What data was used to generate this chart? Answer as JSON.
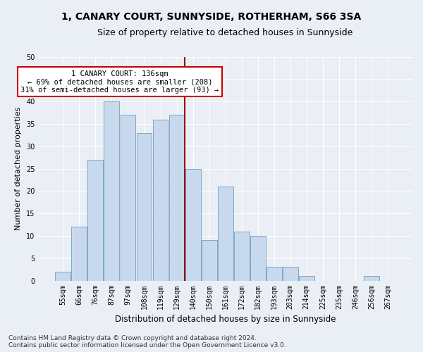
{
  "title1": "1, CANARY COURT, SUNNYSIDE, ROTHERHAM, S66 3SA",
  "title2": "Size of property relative to detached houses in Sunnyside",
  "xlabel": "Distribution of detached houses by size in Sunnyside",
  "ylabel": "Number of detached properties",
  "footnote": "Contains HM Land Registry data © Crown copyright and database right 2024.\nContains public sector information licensed under the Open Government Licence v3.0.",
  "categories": [
    "55sqm",
    "66sqm",
    "76sqm",
    "87sqm",
    "97sqm",
    "108sqm",
    "119sqm",
    "129sqm",
    "140sqm",
    "150sqm",
    "161sqm",
    "172sqm",
    "182sqm",
    "193sqm",
    "203sqm",
    "214sqm",
    "225sqm",
    "235sqm",
    "246sqm",
    "256sqm",
    "267sqm"
  ],
  "values": [
    2,
    12,
    27,
    40,
    37,
    33,
    36,
    37,
    25,
    9,
    21,
    11,
    10,
    3,
    3,
    1,
    0,
    0,
    0,
    1,
    0
  ],
  "bar_color": "#c9d9ed",
  "bar_edge_color": "#7ea8c9",
  "reference_line_value": 7.5,
  "reference_line_color": "#990000",
  "annotation_text": "1 CANARY COURT: 136sqm\n← 69% of detached houses are smaller (208)\n31% of semi-detached houses are larger (93) →",
  "annotation_box_color": "#ffffff",
  "annotation_box_edge_color": "#cc0000",
  "ylim": [
    0,
    50
  ],
  "yticks": [
    0,
    5,
    10,
    15,
    20,
    25,
    30,
    35,
    40,
    45,
    50
  ],
  "bg_color": "#eaeef5",
  "plot_bg_color": "#eaeef5",
  "grid_color": "#ffffff",
  "title1_fontsize": 10,
  "title2_fontsize": 9,
  "xlabel_fontsize": 8.5,
  "ylabel_fontsize": 8,
  "tick_fontsize": 7,
  "annotation_fontsize": 7.5,
  "footnote_fontsize": 6.5
}
